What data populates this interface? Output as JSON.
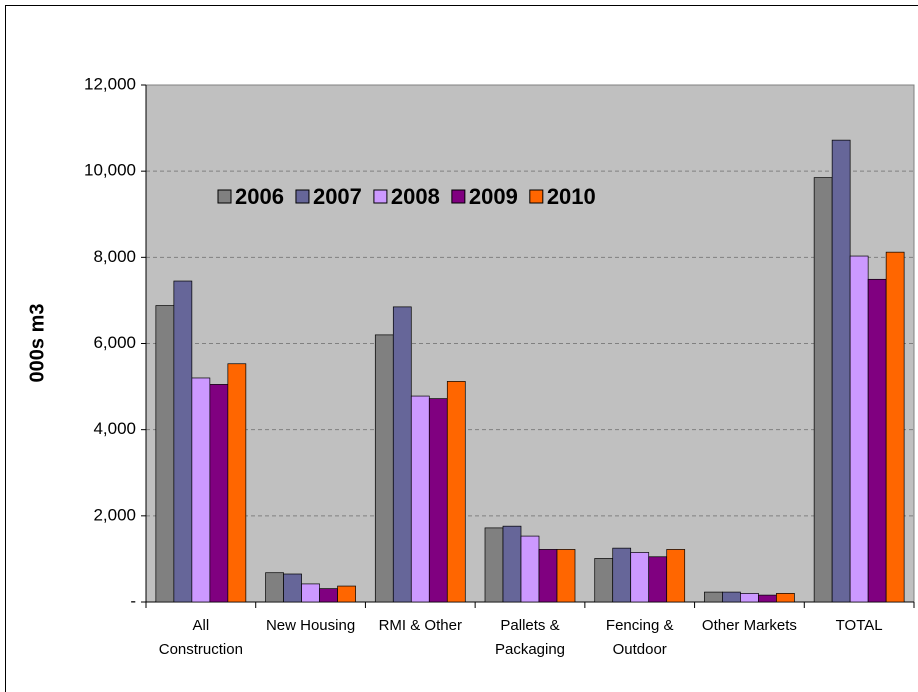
{
  "chart_data": {
    "type": "bar",
    "y_label": "000s m3",
    "categories": [
      "All Construction",
      "New Housing",
      "RMI & Other",
      "Pallets & Packaging",
      "Fencing & Outdoor",
      "Other Markets",
      "TOTAL"
    ],
    "series": [
      {
        "name": "2006",
        "color": "#808080",
        "values": [
          6880,
          680,
          6200,
          1720,
          1010,
          230,
          9850
        ]
      },
      {
        "name": "2007",
        "color": "#666699",
        "values": [
          7450,
          650,
          6850,
          1760,
          1250,
          230,
          10720
        ]
      },
      {
        "name": "2008",
        "color": "#cc99ff",
        "values": [
          5200,
          420,
          4780,
          1530,
          1150,
          200,
          8030
        ]
      },
      {
        "name": "2009",
        "color": "#800080",
        "values": [
          5050,
          310,
          4720,
          1220,
          1050,
          160,
          7490
        ]
      },
      {
        "name": "2010",
        "color": "#ff6600",
        "values": [
          5530,
          370,
          5120,
          1220,
          1220,
          200,
          8120
        ]
      }
    ],
    "ylim": [
      0,
      12000
    ],
    "yticks": [
      {
        "value": 0,
        "label": "-"
      },
      {
        "value": 2000,
        "label": "2,000"
      },
      {
        "value": 4000,
        "label": "4,000"
      },
      {
        "value": 6000,
        "label": "6,000"
      },
      {
        "value": 8000,
        "label": "8,000"
      },
      {
        "value": 10000,
        "label": "10,000"
      },
      {
        "value": 12000,
        "label": "12,000"
      }
    ],
    "grid": true,
    "plot_background": "#c0c0c0",
    "legend_position": "upper left"
  }
}
